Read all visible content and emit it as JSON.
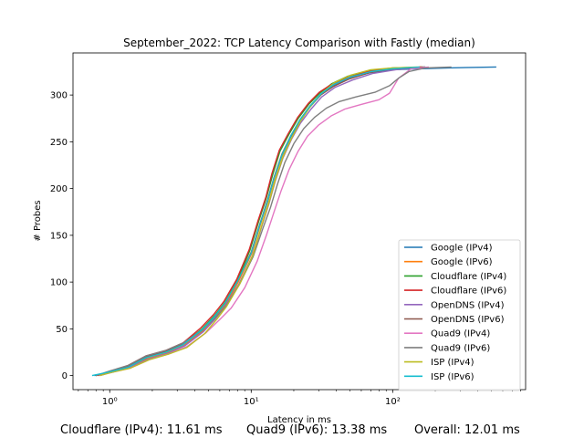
{
  "chart_data": {
    "type": "line",
    "title": "September_2022: TCP Latency Comparison with Fastly (median)",
    "xlabel": "Latency in ms",
    "ylabel": "# Probes",
    "xscale": "log",
    "xlim": [
      0.55,
      870
    ],
    "ylim": [
      -15,
      345
    ],
    "x_ticks": [
      {
        "value": 1,
        "label": "10⁰"
      },
      {
        "value": 10,
        "label": "10¹"
      },
      {
        "value": 100,
        "label": "10²"
      }
    ],
    "y_ticks": [
      0,
      50,
      100,
      150,
      200,
      250,
      300
    ],
    "grid": false,
    "legend_position": "lower-right",
    "series": [
      {
        "name": "Google (IPv4)",
        "color": "#1f77b4",
        "x": [
          0.78,
          1.0,
          1.35,
          1.8,
          2.5,
          3.3,
          4.5,
          5.5,
          6.5,
          8.0,
          10.0,
          11.5,
          13.0,
          14.5,
          16.5,
          19.0,
          22.0,
          26.0,
          31.0,
          38.0,
          50.0,
          70.0,
          100.0,
          150.0,
          250.0,
          540.0
        ],
        "y": [
          0,
          3,
          8,
          18,
          24,
          32,
          48,
          62,
          76,
          100,
          130,
          160,
          185,
          210,
          235,
          255,
          272,
          287,
          300,
          310,
          318,
          324,
          327,
          328,
          329,
          330
        ]
      },
      {
        "name": "Google (IPv6)",
        "color": "#ff7f0e",
        "x": [
          0.8,
          1.0,
          1.4,
          1.9,
          2.6,
          3.4,
          4.6,
          5.6,
          6.6,
          8.1,
          10.1,
          11.6,
          13.1,
          14.6,
          16.6,
          19.0,
          22.0,
          26.0,
          31.0,
          38.0,
          50.0,
          70.0,
          100.0,
          160.0
        ],
        "y": [
          0,
          3,
          9,
          19,
          25,
          33,
          48,
          62,
          76,
          100,
          131,
          161,
          186,
          211,
          236,
          256,
          273,
          288,
          301,
          311,
          319,
          325,
          328,
          330
        ]
      },
      {
        "name": "Cloudflare (IPv4)",
        "color": "#2ca02c",
        "x": [
          0.8,
          1.0,
          1.35,
          1.8,
          2.5,
          3.3,
          4.5,
          5.5,
          6.5,
          8.0,
          9.8,
          11.3,
          12.8,
          14.2,
          16.0,
          18.5,
          21.5,
          25.5,
          30.5,
          37.0,
          48.0,
          68.0,
          100.0,
          170.0
        ],
        "y": [
          0,
          4,
          10,
          20,
          26,
          34,
          50,
          64,
          78,
          102,
          134,
          165,
          190,
          215,
          240,
          258,
          275,
          290,
          302,
          312,
          320,
          326,
          329,
          330
        ]
      },
      {
        "name": "Cloudflare (IPv6)",
        "color": "#d62728",
        "x": [
          0.82,
          1.0,
          1.35,
          1.8,
          2.5,
          3.3,
          4.4,
          5.4,
          6.4,
          7.9,
          9.7,
          11.2,
          12.7,
          14.0,
          15.8,
          18.3,
          21.3,
          25.3,
          30.3,
          36.5,
          47.0,
          66.0,
          95.0,
          160.0
        ],
        "y": [
          0,
          4,
          11,
          21,
          27,
          35,
          51,
          65,
          79,
          103,
          135,
          166,
          191,
          216,
          241,
          259,
          276,
          291,
          303,
          311,
          318,
          325,
          328,
          330
        ]
      },
      {
        "name": "OpenDNS (IPv4)",
        "color": "#9467bd",
        "x": [
          0.85,
          1.0,
          1.4,
          1.9,
          2.6,
          3.4,
          4.6,
          5.6,
          6.6,
          8.2,
          10.2,
          11.8,
          13.3,
          14.8,
          16.8,
          19.3,
          22.3,
          26.5,
          31.5,
          39.0,
          52.0,
          72.0,
          105.0,
          170.0
        ],
        "y": [
          0,
          3,
          9,
          18,
          24,
          32,
          47,
          61,
          75,
          98,
          128,
          158,
          183,
          208,
          233,
          253,
          270,
          285,
          298,
          308,
          316,
          323,
          327,
          330
        ]
      },
      {
        "name": "OpenDNS (IPv6)",
        "color": "#8c564b",
        "x": [
          0.8,
          1.0,
          1.35,
          1.8,
          2.5,
          3.3,
          4.5,
          5.5,
          6.5,
          8.0,
          10.0,
          11.5,
          13.0,
          14.5,
          16.5,
          19.0,
          22.0,
          26.0,
          31.0,
          38.0,
          49.0,
          69.0,
          100.0,
          165.0
        ],
        "y": [
          0,
          4,
          10,
          20,
          26,
          34,
          49,
          63,
          77,
          101,
          132,
          162,
          187,
          212,
          237,
          256,
          273,
          288,
          300,
          309,
          317,
          324,
          328,
          330
        ]
      },
      {
        "name": "Quad9 (IPv4)",
        "color": "#e377c2",
        "x": [
          0.85,
          1.0,
          1.4,
          1.9,
          2.6,
          3.5,
          4.8,
          6.0,
          7.2,
          9.0,
          11.0,
          12.8,
          14.5,
          16.3,
          18.5,
          21.5,
          25.0,
          30.0,
          37.0,
          46.0,
          60.0,
          80.0,
          95.0,
          110.0,
          135.0,
          180.0
        ],
        "y": [
          0,
          3,
          8,
          17,
          23,
          31,
          46,
          60,
          72,
          94,
          122,
          150,
          175,
          198,
          220,
          240,
          256,
          268,
          278,
          285,
          290,
          295,
          302,
          318,
          328,
          330
        ]
      },
      {
        "name": "Quad9 (IPv6)",
        "color": "#7f7f7f",
        "x": [
          0.8,
          1.0,
          1.35,
          1.8,
          2.5,
          3.3,
          4.5,
          5.6,
          6.7,
          8.3,
          10.3,
          12.0,
          13.7,
          15.3,
          17.3,
          20.0,
          23.5,
          28.0,
          34.0,
          42.0,
          55.0,
          75.0,
          95.0,
          110.0,
          130.0,
          170.0,
          260.0
        ],
        "y": [
          0,
          5,
          11,
          21,
          27,
          35,
          49,
          62,
          75,
          98,
          127,
          156,
          180,
          204,
          228,
          248,
          264,
          276,
          286,
          293,
          298,
          303,
          310,
          318,
          325,
          329,
          330
        ]
      },
      {
        "name": "ISP (IPv4)",
        "color": "#bcbd22",
        "x": [
          0.85,
          1.0,
          1.4,
          1.9,
          2.6,
          3.5,
          4.7,
          5.7,
          6.7,
          8.3,
          10.3,
          11.8,
          13.3,
          14.8,
          16.8,
          19.3,
          22.3,
          26.3,
          31.5,
          38.5,
          50.0,
          70.0,
          100.0,
          150.0
        ],
        "y": [
          0,
          3,
          8,
          17,
          23,
          30,
          45,
          60,
          74,
          98,
          129,
          159,
          184,
          209,
          234,
          254,
          272,
          288,
          302,
          313,
          321,
          327,
          329,
          330
        ]
      },
      {
        "name": "ISP (IPv6)",
        "color": "#17becf",
        "x": [
          0.75,
          1.0,
          1.35,
          1.8,
          2.5,
          3.3,
          4.5,
          5.5,
          6.5,
          8.0,
          10.0,
          11.5,
          13.0,
          14.5,
          16.5,
          19.0,
          22.0,
          26.0,
          31.0,
          38.0,
          50.0,
          70.0,
          100.0,
          155.0
        ],
        "y": [
          0,
          4,
          9,
          19,
          25,
          33,
          49,
          63,
          77,
          101,
          131,
          161,
          186,
          211,
          236,
          256,
          273,
          288,
          301,
          311,
          319,
          325,
          328,
          330
        ]
      }
    ]
  },
  "footer": {
    "stat_1": "Cloudflare (IPv4): 11.61 ms",
    "stat_2": "Quad9 (IPv6): 13.38 ms",
    "stat_3": "Overall: 12.01 ms"
  }
}
